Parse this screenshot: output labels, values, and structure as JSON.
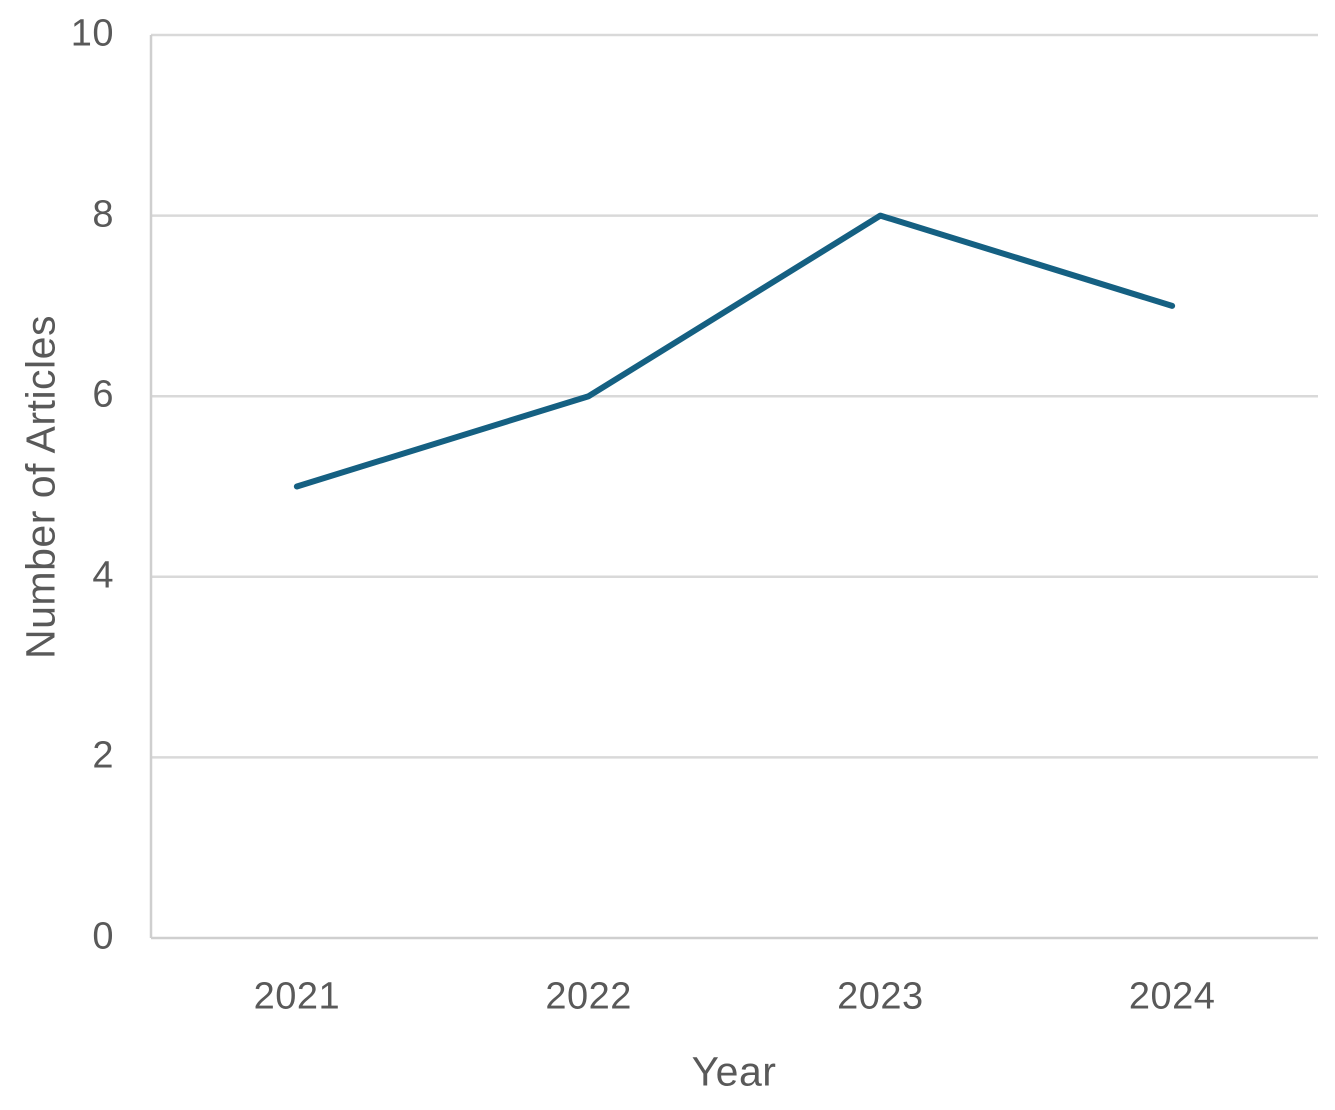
{
  "chart_data": {
    "type": "line",
    "title": "",
    "xlabel": "Year",
    "ylabel": "Number of Articles",
    "categories": [
      "2021",
      "2022",
      "2023",
      "2024"
    ],
    "series": [
      {
        "name": "Number of Articles",
        "values": [
          5,
          6,
          8,
          7
        ]
      }
    ],
    "ylim": [
      0,
      10
    ],
    "yticks": [
      0,
      2,
      4,
      6,
      8,
      10
    ],
    "grid": "horizontal",
    "legend": "none",
    "colors": {
      "line": "#156082",
      "grid": "#d9d9d9",
      "axis": "#cfcfcf",
      "text": "#595959"
    }
  }
}
